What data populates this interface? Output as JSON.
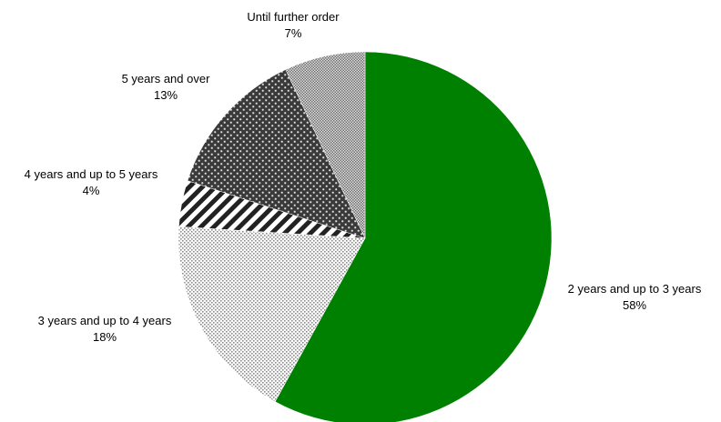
{
  "chart_data": {
    "type": "pie",
    "title": "",
    "start_angle_deg": 0,
    "direction": "clockwise",
    "slices": [
      {
        "label": "2 years and up to 3 years",
        "value": 58,
        "display": "58%",
        "fill": "#008000",
        "pattern": "solid"
      },
      {
        "label": "3 years and up to 4 years",
        "value": 18,
        "display": "18%",
        "fill": "#bfbfbf",
        "pattern": "fine-dots"
      },
      {
        "label": "4 years and up to 5 years",
        "value": 4,
        "display": "4%",
        "fill": "#ffffff",
        "pattern": "diagonal-stripes"
      },
      {
        "label": "5 years and over",
        "value": 13,
        "display": "13%",
        "fill": "#404040",
        "pattern": "white-dots-on-dark"
      },
      {
        "label": "Until further order",
        "value": 7,
        "display": "7%",
        "fill": "#a6a6a6",
        "pattern": "checker"
      }
    ]
  }
}
